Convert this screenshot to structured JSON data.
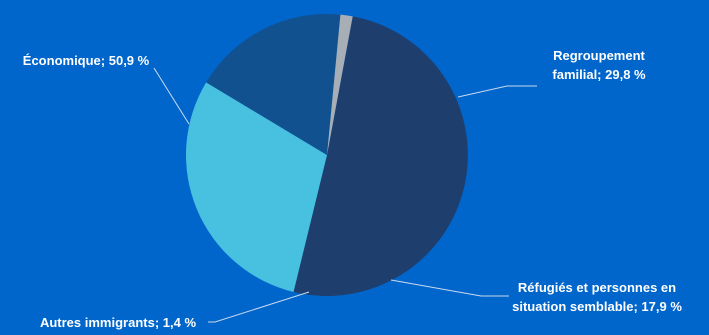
{
  "chart_data": {
    "type": "pie",
    "slices": [
      {
        "label": "Économique",
        "value": 50.9,
        "color": "#1e3f6e",
        "text_lines": [
          "Économique; 50,9 %"
        ]
      },
      {
        "label": "Regroupement familial",
        "value": 29.8,
        "color": "#48c0e0",
        "text_lines": [
          "Regroupement",
          "familial; 29,8 %"
        ]
      },
      {
        "label": "Réfugiés et personnes en situation semblable",
        "value": 17.9,
        "color": "#11518f",
        "text_lines": [
          "Réfugiés et personnes en",
          "situation semblable; 17,9 %"
        ]
      },
      {
        "label": "Autres immigrants",
        "value": 1.4,
        "color": "#a8aeb6",
        "text_lines": [
          "Autres immigrants; 1,4 %"
        ]
      }
    ],
    "background_color": "#0066cc",
    "legend": "none"
  }
}
